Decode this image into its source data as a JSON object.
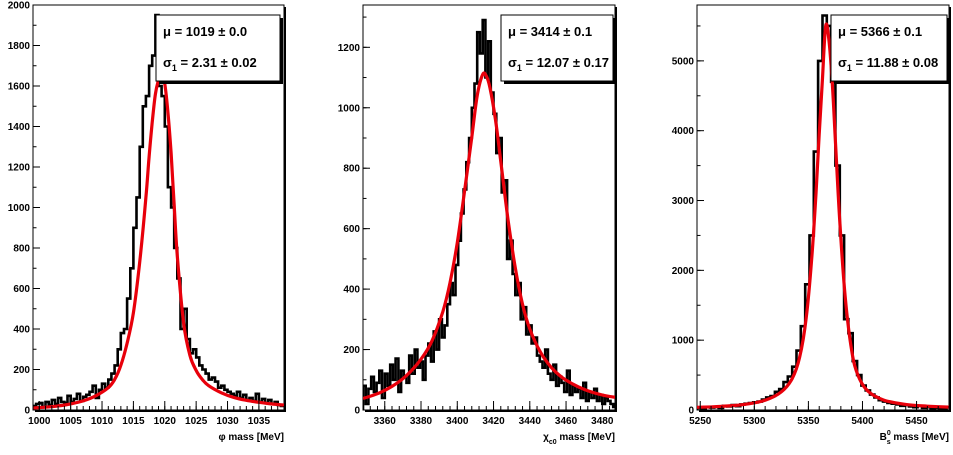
{
  "figure": {
    "background": "#ffffff",
    "hist_color": "#000000",
    "fit_color": "#e8000b"
  },
  "chart_data": [
    {
      "type": "line",
      "xlabel_symbol": "φ",
      "xlabel_sub": "",
      "xlabel_sup": "",
      "xlabel_text": " mass [MeV]",
      "xlim": [
        999,
        1039
      ],
      "ylim": [
        0,
        2000
      ],
      "xticks": [
        1000,
        1005,
        1010,
        1015,
        1020,
        1025,
        1030,
        1035
      ],
      "yticks": [
        0,
        200,
        400,
        600,
        800,
        1000,
        1200,
        1400,
        1600,
        1800,
        2000
      ],
      "grid": false,
      "stats": {
        "mu_label": "μ = 1019 ± 0.0",
        "sigma_sym": "σ",
        "sigma_sub": "1",
        "sigma_value": " = 2.31 ± 0.02"
      },
      "series": [
        {
          "kind": "histogram",
          "bin_width": 0.5,
          "x": [
            999.0,
            999.5,
            1000.0,
            1000.5,
            1001.0,
            1001.5,
            1002.0,
            1002.5,
            1003.0,
            1003.5,
            1004.0,
            1004.5,
            1005.0,
            1005.5,
            1006.0,
            1006.5,
            1007.0,
            1007.5,
            1008.0,
            1008.5,
            1009.0,
            1009.5,
            1010.0,
            1010.5,
            1011.0,
            1011.5,
            1012.0,
            1012.5,
            1013.0,
            1013.5,
            1014.0,
            1014.5,
            1015.0,
            1015.5,
            1016.0,
            1016.5,
            1017.0,
            1017.5,
            1018.0,
            1018.5,
            1019.0,
            1019.5,
            1020.0,
            1020.5,
            1021.0,
            1021.5,
            1022.0,
            1022.5,
            1023.0,
            1023.5,
            1024.0,
            1024.5,
            1025.0,
            1025.5,
            1026.0,
            1026.5,
            1027.0,
            1027.5,
            1028.0,
            1028.5,
            1029.0,
            1029.5,
            1030.0,
            1030.5,
            1031.0,
            1031.5,
            1032.0,
            1032.5,
            1033.0,
            1033.5,
            1034.0,
            1034.5,
            1035.0,
            1035.5,
            1036.0,
            1036.5,
            1037.0,
            1037.5,
            1038.0,
            1038.5
          ],
          "values": [
            20,
            30,
            35,
            15,
            40,
            25,
            50,
            30,
            60,
            40,
            35,
            70,
            40,
            55,
            80,
            45,
            65,
            75,
            90,
            120,
            60,
            100,
            130,
            110,
            150,
            180,
            220,
            300,
            380,
            400,
            550,
            700,
            900,
            1050,
            1300,
            1500,
            1550,
            1700,
            1750,
            1950,
            1600,
            1550,
            1400,
            1100,
            1000,
            800,
            650,
            400,
            500,
            350,
            280,
            300,
            260,
            220,
            200,
            180,
            150,
            160,
            140,
            110,
            120,
            100,
            90,
            80,
            70,
            90,
            60,
            75,
            50,
            60,
            45,
            80,
            40,
            55,
            35,
            50,
            30,
            40,
            25,
            20
          ]
        },
        {
          "kind": "fit",
          "x": [
            999,
            1001,
            1003,
            1005,
            1007,
            1009,
            1011,
            1012,
            1013,
            1014,
            1015,
            1016,
            1017,
            1017.5,
            1018,
            1018.5,
            1019,
            1019.3,
            1019.6,
            1020,
            1020.5,
            1021,
            1021.5,
            1022,
            1023,
            1024,
            1025,
            1026,
            1027,
            1029,
            1031,
            1033,
            1035,
            1037,
            1039
          ],
          "values": [
            10,
            14,
            20,
            30,
            45,
            70,
            110,
            150,
            220,
            330,
            480,
            730,
            1050,
            1250,
            1420,
            1560,
            1630,
            1650,
            1650,
            1610,
            1470,
            1270,
            1010,
            760,
            430,
            270,
            195,
            150,
            120,
            85,
            62,
            48,
            38,
            30,
            24
          ]
        }
      ]
    },
    {
      "type": "line",
      "xlabel_symbol": "χ",
      "xlabel_sub": "c0",
      "xlabel_sup": "",
      "xlabel_text": " mass [MeV]",
      "xlim": [
        3348,
        3487
      ],
      "ylim": [
        0,
        1340
      ],
      "xticks": [
        3360,
        3380,
        3400,
        3420,
        3440,
        3460,
        3480
      ],
      "yticks": [
        0,
        200,
        400,
        600,
        800,
        1000,
        1200
      ],
      "grid": false,
      "stats": {
        "mu_label": "μ = 3414 ± 0.1",
        "sigma_sym": "σ",
        "sigma_sub": "1",
        "sigma_value": " = 12.07 ± 0.17"
      },
      "series": [
        {
          "kind": "histogram",
          "bin_width": 1.5,
          "x": [
            3348,
            3349.5,
            3351,
            3352.5,
            3354,
            3355.5,
            3357,
            3358.5,
            3360,
            3361.5,
            3363,
            3364.5,
            3366,
            3367.5,
            3369,
            3370.5,
            3372,
            3373.5,
            3375,
            3376.5,
            3378,
            3379.5,
            3381,
            3382.5,
            3384,
            3385.5,
            3387,
            3388.5,
            3390,
            3391.5,
            3393,
            3394.5,
            3396,
            3397.5,
            3399,
            3400.5,
            3402,
            3403.5,
            3405,
            3406.5,
            3408,
            3409.5,
            3411,
            3412.5,
            3414,
            3415.5,
            3417,
            3418.5,
            3420,
            3421.5,
            3423,
            3424.5,
            3426,
            3427.5,
            3429,
            3430.5,
            3432,
            3433.5,
            3435,
            3436.5,
            3438,
            3439.5,
            3441,
            3442.5,
            3444,
            3445.5,
            3447,
            3448.5,
            3450,
            3451.5,
            3453,
            3454.5,
            3456,
            3457.5,
            3459,
            3460.5,
            3462,
            3463.5,
            3465,
            3466.5,
            3468,
            3469.5,
            3471,
            3472.5,
            3474,
            3475.5,
            3477,
            3478.5,
            3480,
            3481.5,
            3483,
            3484.5,
            3486
          ],
          "values": [
            80,
            20,
            70,
            110,
            60,
            90,
            130,
            40,
            120,
            80,
            150,
            100,
            170,
            60,
            130,
            110,
            90,
            180,
            120,
            200,
            140,
            160,
            100,
            180,
            220,
            160,
            260,
            200,
            300,
            240,
            280,
            350,
            420,
            380,
            480,
            560,
            650,
            730,
            820,
            900,
            1000,
            1080,
            1250,
            1180,
            1290,
            1100,
            1220,
            1050,
            980,
            850,
            900,
            720,
            760,
            500,
            560,
            450,
            380,
            420,
            300,
            340,
            250,
            280,
            220,
            240,
            180,
            160,
            140,
            200,
            120,
            100,
            150,
            80,
            110,
            90,
            60,
            130,
            50,
            80,
            60,
            70,
            40,
            90,
            30,
            60,
            40,
            70,
            30,
            50,
            20,
            40,
            30,
            20,
            10
          ]
        },
        {
          "kind": "fit",
          "x": [
            3348,
            3356,
            3364,
            3372,
            3380,
            3386,
            3392,
            3396,
            3400,
            3404,
            3408,
            3411,
            3414,
            3416,
            3418,
            3421,
            3424,
            3428,
            3432,
            3436,
            3440,
            3446,
            3452,
            3458,
            3464,
            3470,
            3476,
            3482,
            3487
          ],
          "values": [
            38,
            54,
            78,
            114,
            168,
            228,
            325,
            421,
            554,
            723,
            903,
            1040,
            1110,
            1105,
            1067,
            964,
            822,
            630,
            470,
            350,
            268,
            190,
            140,
            107,
            85,
            68,
            56,
            47,
            42
          ]
        }
      ]
    },
    {
      "type": "line",
      "xlabel_symbol": "B",
      "xlabel_sub": "s",
      "xlabel_sup": "0",
      "xlabel_text": " mass [MeV]",
      "xlim": [
        5247,
        5480
      ],
      "ylim": [
        0,
        5800
      ],
      "xticks": [
        5250,
        5300,
        5350,
        5400,
        5450
      ],
      "yticks": [
        0,
        1000,
        2000,
        3000,
        4000,
        5000
      ],
      "grid": false,
      "stats": {
        "mu_label": "μ = 5366 ± 0.1",
        "sigma_sym": "σ",
        "sigma_sub": "1",
        "sigma_value": " = 11.88 ± 0.08"
      },
      "series": [
        {
          "kind": "histogram",
          "bin_width": 4,
          "x": [
            5247,
            5251,
            5255,
            5259,
            5263,
            5267,
            5271,
            5275,
            5279,
            5283,
            5287,
            5291,
            5295,
            5299,
            5303,
            5307,
            5311,
            5315,
            5319,
            5323,
            5327,
            5331,
            5335,
            5339,
            5343,
            5347,
            5351,
            5355,
            5359,
            5363,
            5367,
            5371,
            5375,
            5379,
            5383,
            5387,
            5391,
            5395,
            5399,
            5403,
            5407,
            5411,
            5415,
            5419,
            5423,
            5427,
            5431,
            5435,
            5439,
            5443,
            5447,
            5451,
            5455,
            5459,
            5463,
            5467,
            5471,
            5475
          ],
          "values": [
            30,
            20,
            40,
            35,
            45,
            30,
            60,
            50,
            70,
            55,
            80,
            90,
            100,
            110,
            120,
            150,
            180,
            200,
            260,
            300,
            400,
            480,
            620,
            850,
            1200,
            1800,
            2500,
            3700,
            5000,
            5650,
            5500,
            4700,
            3500,
            2500,
            1300,
            1100,
            700,
            500,
            350,
            280,
            220,
            180,
            140,
            120,
            100,
            90,
            80,
            60,
            70,
            50,
            40,
            60,
            30,
            40,
            20,
            30,
            20,
            10
          ]
        },
        {
          "kind": "fit",
          "x": [
            5247,
            5270,
            5290,
            5310,
            5325,
            5335,
            5342,
            5348,
            5353,
            5357,
            5360,
            5363,
            5366,
            5369,
            5372,
            5375,
            5379,
            5384,
            5390,
            5396,
            5405,
            5420,
            5440,
            5460,
            5480
          ],
          "values": [
            38,
            53,
            77,
            140,
            260,
            450,
            760,
            1320,
            2150,
            3100,
            3950,
            4750,
            5500,
            5300,
            4700,
            3850,
            2700,
            1620,
            850,
            490,
            270,
            140,
            80,
            55,
            41
          ]
        }
      ]
    }
  ]
}
